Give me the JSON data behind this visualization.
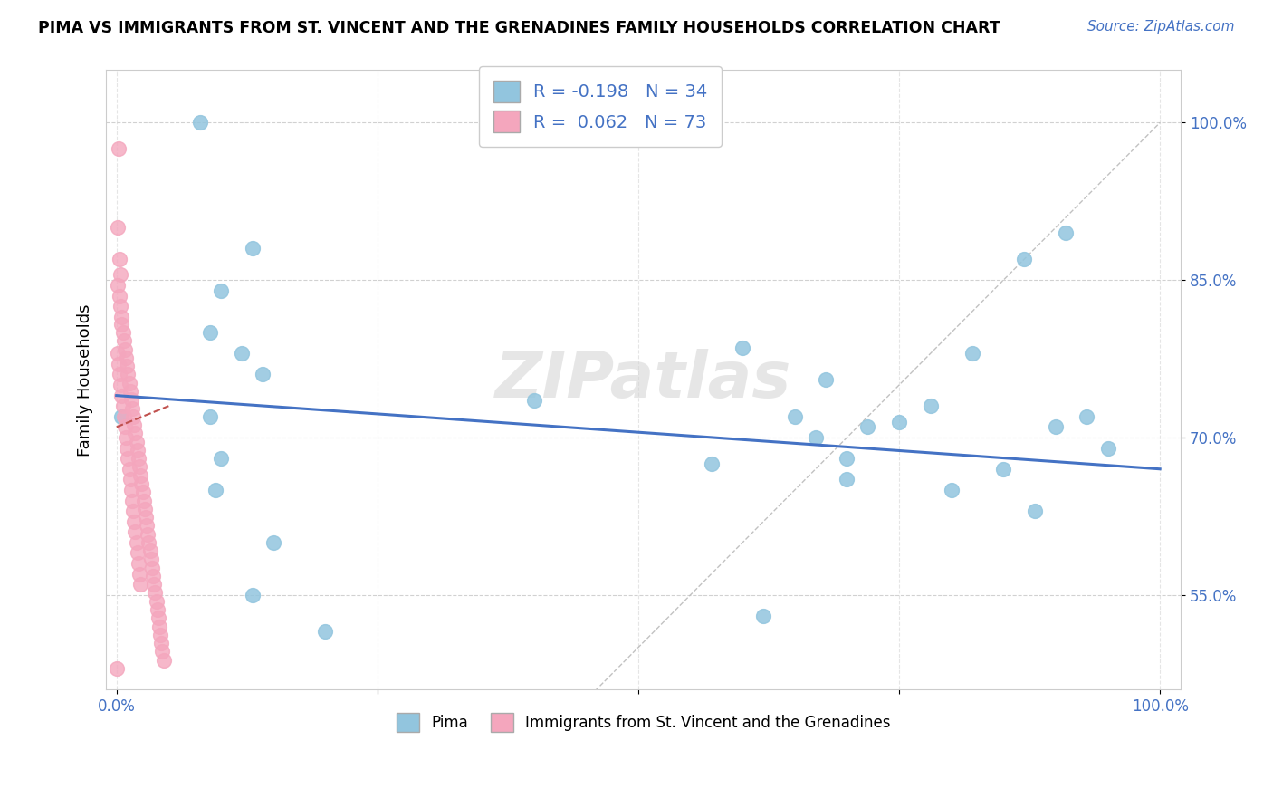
{
  "title": "PIMA VS IMMIGRANTS FROM ST. VINCENT AND THE GRENADINES FAMILY HOUSEHOLDS CORRELATION CHART",
  "source": "Source: ZipAtlas.com",
  "ylabel": "Family Households",
  "xlim": [
    -0.01,
    1.02
  ],
  "ylim": [
    0.46,
    1.05
  ],
  "yticks": [
    0.55,
    0.7,
    0.85,
    1.0
  ],
  "ytick_labels": [
    "55.0%",
    "70.0%",
    "85.0%",
    "100.0%"
  ],
  "xtick_labels": [
    "0.0%",
    "",
    "",
    "",
    "100.0%"
  ],
  "legend_label1": "R = -0.198   N = 34",
  "legend_label2": "R =  0.062   N = 73",
  "legend_bottom_label1": "Pima",
  "legend_bottom_label2": "Immigrants from St. Vincent and the Grenadines",
  "blue_color": "#92C5DE",
  "pink_color": "#F4A6BD",
  "blue_line_color": "#4472C4",
  "pink_line_color": "#C0504D",
  "blue_scatter_x": [
    0.08,
    0.13,
    0.1,
    0.09,
    0.12,
    0.14,
    0.09,
    0.095,
    0.15,
    0.13,
    0.2,
    0.4,
    0.57,
    0.62,
    0.67,
    0.7,
    0.75,
    0.78,
    0.82,
    0.87,
    0.9,
    0.93,
    0.95,
    0.68,
    0.72,
    0.8,
    0.85,
    0.88,
    0.91,
    0.005,
    0.6,
    0.65,
    0.7,
    0.1
  ],
  "blue_scatter_y": [
    1.0,
    0.88,
    0.84,
    0.8,
    0.78,
    0.76,
    0.72,
    0.65,
    0.6,
    0.55,
    0.515,
    0.735,
    0.675,
    0.53,
    0.7,
    0.68,
    0.715,
    0.73,
    0.78,
    0.87,
    0.71,
    0.72,
    0.69,
    0.755,
    0.71,
    0.65,
    0.67,
    0.63,
    0.895,
    0.72,
    0.785,
    0.72,
    0.66,
    0.68
  ],
  "pink_scatter_x": [
    0.002,
    0.001,
    0.003,
    0.004,
    0.0015,
    0.0025,
    0.0035,
    0.0045,
    0.005,
    0.006,
    0.007,
    0.008,
    0.009,
    0.01,
    0.011,
    0.012,
    0.013,
    0.014,
    0.015,
    0.016,
    0.017,
    0.018,
    0.019,
    0.02,
    0.021,
    0.022,
    0.023,
    0.024,
    0.025,
    0.026,
    0.027,
    0.028,
    0.029,
    0.03,
    0.031,
    0.032,
    0.033,
    0.034,
    0.035,
    0.036,
    0.037,
    0.038,
    0.039,
    0.04,
    0.041,
    0.042,
    0.043,
    0.044,
    0.045,
    0.001,
    0.002,
    0.003,
    0.004,
    0.005,
    0.006,
    0.007,
    0.008,
    0.009,
    0.01,
    0.011,
    0.012,
    0.013,
    0.014,
    0.015,
    0.016,
    0.017,
    0.018,
    0.019,
    0.02,
    0.021,
    0.022,
    0.023,
    0.0
  ],
  "pink_scatter_y": [
    0.975,
    0.9,
    0.87,
    0.855,
    0.845,
    0.835,
    0.825,
    0.815,
    0.808,
    0.8,
    0.792,
    0.784,
    0.776,
    0.768,
    0.76,
    0.752,
    0.744,
    0.736,
    0.728,
    0.72,
    0.712,
    0.704,
    0.696,
    0.688,
    0.68,
    0.672,
    0.664,
    0.656,
    0.648,
    0.64,
    0.632,
    0.624,
    0.616,
    0.608,
    0.6,
    0.592,
    0.584,
    0.576,
    0.568,
    0.56,
    0.552,
    0.544,
    0.536,
    0.528,
    0.52,
    0.512,
    0.504,
    0.496,
    0.488,
    0.78,
    0.77,
    0.76,
    0.75,
    0.74,
    0.73,
    0.72,
    0.71,
    0.7,
    0.69,
    0.68,
    0.67,
    0.66,
    0.65,
    0.64,
    0.63,
    0.62,
    0.61,
    0.6,
    0.59,
    0.58,
    0.57,
    0.56,
    0.48
  ],
  "blue_trendline_x": [
    0.0,
    1.0
  ],
  "blue_trendline_y": [
    0.74,
    0.67
  ],
  "pink_trendline_x": [
    0.0,
    0.05
  ],
  "pink_trendline_y": [
    0.71,
    0.73
  ],
  "watermark": "ZIPatlas",
  "background_color": "#FFFFFF",
  "grid_color": "#CCCCCC"
}
